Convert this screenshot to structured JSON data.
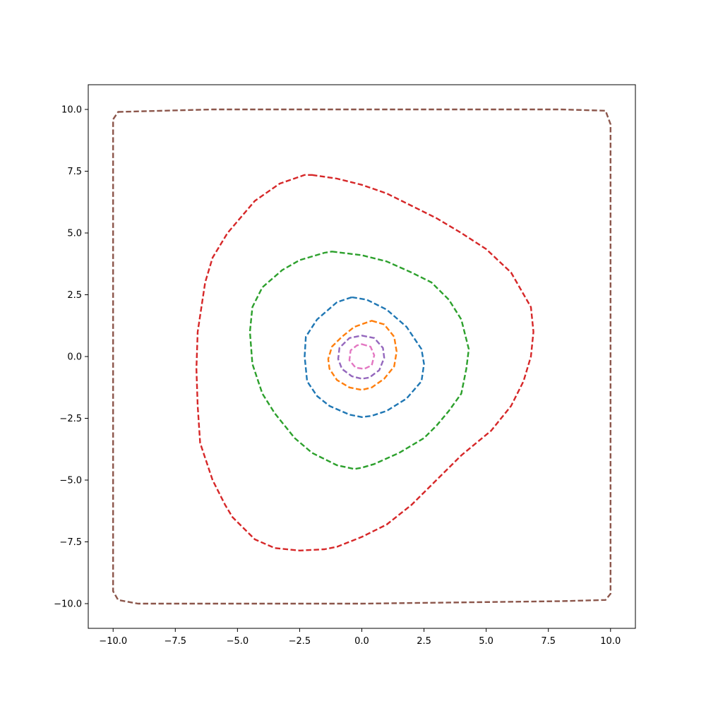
{
  "chart_data": {
    "type": "contour",
    "title": "",
    "xlabel": "",
    "ylabel": "",
    "xlim": [
      -11,
      11
    ],
    "ylim": [
      -11,
      11
    ],
    "grid": false,
    "legend": "none",
    "line_style": "dashed",
    "x_ticks": [
      {
        "value": -10,
        "label": "−10.0"
      },
      {
        "value": -7.5,
        "label": "−7.5"
      },
      {
        "value": -5,
        "label": "−5.0"
      },
      {
        "value": -2.5,
        "label": "−2.5"
      },
      {
        "value": 0,
        "label": "0.0"
      },
      {
        "value": 2.5,
        "label": "2.5"
      },
      {
        "value": 5,
        "label": "5.0"
      },
      {
        "value": 7.5,
        "label": "7.5"
      },
      {
        "value": 10,
        "label": "10.0"
      }
    ],
    "y_ticks": [
      {
        "value": 10,
        "label": "10.0"
      },
      {
        "value": 7.5,
        "label": "7.5"
      },
      {
        "value": 5,
        "label": "5.0"
      },
      {
        "value": 2.5,
        "label": "2.5"
      },
      {
        "value": 0,
        "label": "0.0"
      },
      {
        "value": -2.5,
        "label": "−2.5"
      },
      {
        "value": -5,
        "label": "−5.0"
      },
      {
        "value": -7.5,
        "label": "−7.5"
      },
      {
        "value": -10,
        "label": "−10.0"
      }
    ],
    "series": [
      {
        "color": "#8c564b",
        "points": [
          [
            -9.8,
            9.9
          ],
          [
            -6,
            10
          ],
          [
            0,
            10
          ],
          [
            8,
            10
          ],
          [
            9.8,
            9.95
          ],
          [
            10,
            9.4
          ],
          [
            10,
            0
          ],
          [
            10,
            -9.6
          ],
          [
            9.8,
            -9.85
          ],
          [
            8,
            -9.9
          ],
          [
            0,
            -10
          ],
          [
            -9,
            -10
          ],
          [
            -9.8,
            -9.85
          ],
          [
            -10,
            -9.5
          ],
          [
            -10,
            0
          ],
          [
            -10,
            9.6
          ],
          [
            -9.8,
            9.9
          ]
        ]
      },
      {
        "color": "#d62728",
        "points": [
          [
            -2,
            7.35
          ],
          [
            -1,
            7.2
          ],
          [
            0,
            6.95
          ],
          [
            1,
            6.6
          ],
          [
            2,
            6.1
          ],
          [
            3,
            5.6
          ],
          [
            4,
            5
          ],
          [
            5,
            4.35
          ],
          [
            6,
            3.4
          ],
          [
            6.8,
            2
          ],
          [
            6.9,
            1
          ],
          [
            6.8,
            0
          ],
          [
            6.5,
            -1
          ],
          [
            6,
            -2
          ],
          [
            5.2,
            -3
          ],
          [
            4,
            -4
          ],
          [
            3,
            -5
          ],
          [
            2,
            -6
          ],
          [
            1,
            -6.8
          ],
          [
            0,
            -7.3
          ],
          [
            -1,
            -7.7
          ],
          [
            -1.5,
            -7.8
          ],
          [
            -2.5,
            -7.85
          ],
          [
            -3.5,
            -7.75
          ],
          [
            -4.3,
            -7.4
          ],
          [
            -5.2,
            -6.5
          ],
          [
            -5.5,
            -6
          ],
          [
            -6,
            -5
          ],
          [
            -6.5,
            -3.5
          ],
          [
            -6.6,
            -2
          ],
          [
            -6.65,
            -0.5
          ],
          [
            -6.6,
            1
          ],
          [
            -6.3,
            3
          ],
          [
            -6,
            4
          ],
          [
            -5.4,
            5
          ],
          [
            -4.3,
            6.3
          ],
          [
            -3.3,
            7
          ],
          [
            -2.3,
            7.35
          ],
          [
            -2,
            7.35
          ]
        ]
      },
      {
        "color": "#2ca02c",
        "points": [
          [
            -1.2,
            4.25
          ],
          [
            0,
            4.1
          ],
          [
            1,
            3.85
          ],
          [
            2,
            3.4
          ],
          [
            2.8,
            3
          ],
          [
            3.5,
            2.3
          ],
          [
            4,
            1.5
          ],
          [
            4.3,
            0.3
          ],
          [
            4.2,
            -0.5
          ],
          [
            4,
            -1.5
          ],
          [
            3.5,
            -2.2
          ],
          [
            3,
            -2.8
          ],
          [
            2.5,
            -3.3
          ],
          [
            1.5,
            -3.9
          ],
          [
            0.5,
            -4.35
          ],
          [
            0,
            -4.5
          ],
          [
            -0.3,
            -4.55
          ],
          [
            -1,
            -4.4
          ],
          [
            -2,
            -3.9
          ],
          [
            -2.7,
            -3.3
          ],
          [
            -3.5,
            -2.3
          ],
          [
            -4,
            -1.5
          ],
          [
            -4.4,
            -0.3
          ],
          [
            -4.5,
            1
          ],
          [
            -4.4,
            2
          ],
          [
            -4,
            2.8
          ],
          [
            -3.2,
            3.5
          ],
          [
            -2.5,
            3.9
          ],
          [
            -1.5,
            4.2
          ],
          [
            -1.2,
            4.25
          ]
        ]
      },
      {
        "color": "#1f77b4",
        "points": [
          [
            -0.4,
            2.4
          ],
          [
            0.2,
            2.3
          ],
          [
            1,
            1.9
          ],
          [
            1.8,
            1.2
          ],
          [
            2.4,
            0.3
          ],
          [
            2.5,
            -0.3
          ],
          [
            2.4,
            -1
          ],
          [
            1.8,
            -1.7
          ],
          [
            1,
            -2.2
          ],
          [
            0.4,
            -2.4
          ],
          [
            0,
            -2.45
          ],
          [
            -0.5,
            -2.35
          ],
          [
            -1.3,
            -2
          ],
          [
            -1.8,
            -1.6
          ],
          [
            -2.2,
            -1
          ],
          [
            -2.3,
            0
          ],
          [
            -2.25,
            0.8
          ],
          [
            -1.8,
            1.5
          ],
          [
            -1,
            2.2
          ],
          [
            -0.4,
            2.4
          ]
        ]
      },
      {
        "color": "#ff7f0e",
        "points": [
          [
            0.4,
            1.45
          ],
          [
            0.9,
            1.3
          ],
          [
            1.3,
            0.8
          ],
          [
            1.4,
            0.2
          ],
          [
            1.3,
            -0.4
          ],
          [
            0.9,
            -0.9
          ],
          [
            0.4,
            -1.25
          ],
          [
            0,
            -1.35
          ],
          [
            -0.5,
            -1.25
          ],
          [
            -1,
            -0.95
          ],
          [
            -1.3,
            -0.5
          ],
          [
            -1.35,
            -0.1
          ],
          [
            -1.2,
            0.4
          ],
          [
            -0.8,
            0.8
          ],
          [
            -0.3,
            1.2
          ],
          [
            0.4,
            1.45
          ]
        ]
      },
      {
        "color": "#9467bd",
        "points": [
          [
            0,
            0.85
          ],
          [
            0.5,
            0.75
          ],
          [
            0.85,
            0.35
          ],
          [
            0.9,
            -0.05
          ],
          [
            0.7,
            -0.55
          ],
          [
            0.3,
            -0.85
          ],
          [
            0,
            -0.9
          ],
          [
            -0.4,
            -0.8
          ],
          [
            -0.8,
            -0.5
          ],
          [
            -0.95,
            -0.1
          ],
          [
            -0.9,
            0.35
          ],
          [
            -0.5,
            0.75
          ],
          [
            0,
            0.85
          ]
        ]
      },
      {
        "color": "#e377c2",
        "points": [
          [
            0,
            0.5
          ],
          [
            0.35,
            0.4
          ],
          [
            0.5,
            0.05
          ],
          [
            0.4,
            -0.35
          ],
          [
            0.1,
            -0.5
          ],
          [
            -0.25,
            -0.45
          ],
          [
            -0.5,
            -0.15
          ],
          [
            -0.45,
            0.25
          ],
          [
            -0.2,
            0.45
          ],
          [
            0,
            0.5
          ]
        ]
      }
    ]
  }
}
